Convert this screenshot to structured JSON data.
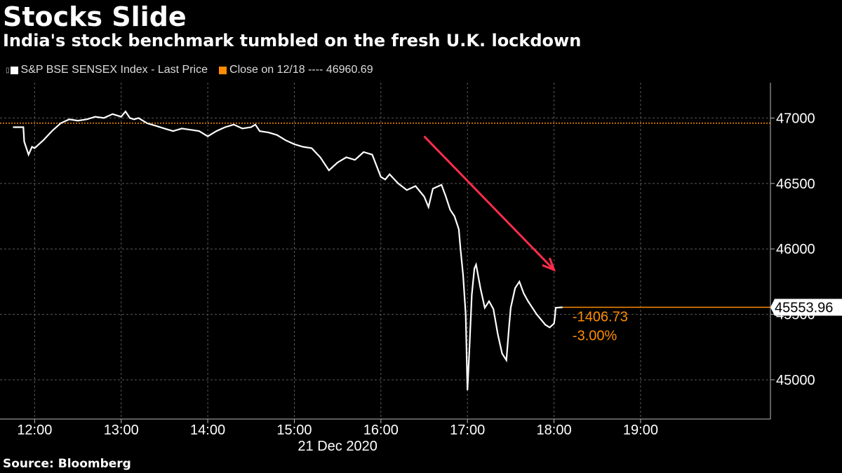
{
  "title": "Stocks Slide",
  "subtitle": "India's stock benchmark tumbled on the fresh U.K. lockdown",
  "source": "Source: Bloomberg",
  "colors": {
    "background": "#000000",
    "price_line": "#ffffff",
    "close_line": "#ff8c00",
    "arrow": "#ff2d4b",
    "grid": "#5a5a5a"
  },
  "legend": [
    {
      "label": "S&P BSE SENSEX Index - Last Price",
      "color": "#ffffff"
    },
    {
      "label": "Close on 12/18 ---- 46960.69",
      "color": "#ff8c00"
    }
  ],
  "chart_data": {
    "type": "line",
    "title": "Stocks Slide",
    "subtitle": "India's stock benchmark tumbled on the fresh U.K. lockdown",
    "date_label": "21 Dec 2020",
    "x_unit": "hours",
    "xlim": [
      11.6,
      20.5
    ],
    "ylim": [
      44700,
      47270
    ],
    "x_ticks": [
      {
        "value": 12,
        "label": "12:00"
      },
      {
        "value": 13,
        "label": "13:00"
      },
      {
        "value": 14,
        "label": "14:00"
      },
      {
        "value": 15,
        "label": "15:00"
      },
      {
        "value": 16,
        "label": "16:00"
      },
      {
        "value": 17,
        "label": "17:00"
      },
      {
        "value": 18,
        "label": "18:00"
      },
      {
        "value": 19,
        "label": "19:00"
      }
    ],
    "y_ticks": [
      {
        "value": 45000,
        "label": "45000"
      },
      {
        "value": 45500,
        "label": "45500"
      },
      {
        "value": 46000,
        "label": "46000"
      },
      {
        "value": 46500,
        "label": "46500"
      },
      {
        "value": 47000,
        "label": "47000"
      }
    ],
    "grid": true,
    "legend_position": "top-left",
    "series": [
      {
        "name": "S&P BSE SENSEX Index - Last Price",
        "x": [
          11.75,
          11.87,
          11.88,
          11.93,
          11.97,
          12.0,
          12.05,
          12.1,
          12.2,
          12.3,
          12.4,
          12.5,
          12.6,
          12.7,
          12.8,
          12.9,
          13.0,
          13.05,
          13.1,
          13.15,
          13.2,
          13.3,
          13.4,
          13.5,
          13.6,
          13.7,
          13.8,
          13.9,
          14.0,
          14.1,
          14.2,
          14.3,
          14.4,
          14.5,
          14.55,
          14.6,
          14.7,
          14.8,
          14.9,
          15.0,
          15.1,
          15.2,
          15.3,
          15.4,
          15.5,
          15.55,
          15.6,
          15.7,
          15.8,
          15.9,
          16.0,
          16.05,
          16.1,
          16.2,
          16.3,
          16.4,
          16.5,
          16.55,
          16.6,
          16.7,
          16.75,
          16.8,
          16.85,
          16.9,
          16.92,
          16.95,
          16.98,
          17.0,
          17.02,
          17.05,
          17.08,
          17.1,
          17.15,
          17.2,
          17.25,
          17.3,
          17.35,
          17.4,
          17.45,
          17.48,
          17.5,
          17.55,
          17.6,
          17.65,
          17.7,
          17.75,
          17.8,
          17.85,
          17.9,
          17.95,
          18.0,
          18.01,
          18.02,
          18.1
        ],
        "y": [
          46930,
          46930,
          46820,
          46720,
          46780,
          46770,
          46800,
          46830,
          46900,
          46960,
          46990,
          46980,
          46990,
          47010,
          47000,
          47030,
          47010,
          47050,
          47000,
          46990,
          47000,
          46960,
          46940,
          46920,
          46900,
          46920,
          46910,
          46900,
          46860,
          46900,
          46930,
          46950,
          46920,
          46930,
          46950,
          46900,
          46890,
          46870,
          46830,
          46800,
          46780,
          46770,
          46700,
          46600,
          46660,
          46680,
          46700,
          46680,
          46740,
          46720,
          46550,
          46530,
          46570,
          46500,
          46450,
          46480,
          46400,
          46320,
          46460,
          46490,
          46400,
          46300,
          46250,
          46150,
          46000,
          45800,
          45500,
          44920,
          45200,
          45650,
          45850,
          45880,
          45700,
          45550,
          45600,
          45540,
          45350,
          45200,
          45150,
          45400,
          45550,
          45700,
          45750,
          45660,
          45600,
          45550,
          45500,
          45460,
          45420,
          45400,
          45430,
          45480,
          45550,
          45553.96
        ]
      },
      {
        "name": "Close on 12/18",
        "value": 46960.69
      }
    ],
    "last_price": "45553.96",
    "change_labels": [
      "-1406.73",
      "-3.00%"
    ],
    "arrow": {
      "from": [
        16.5,
        46860
      ],
      "to": [
        18.0,
        45840
      ]
    }
  }
}
